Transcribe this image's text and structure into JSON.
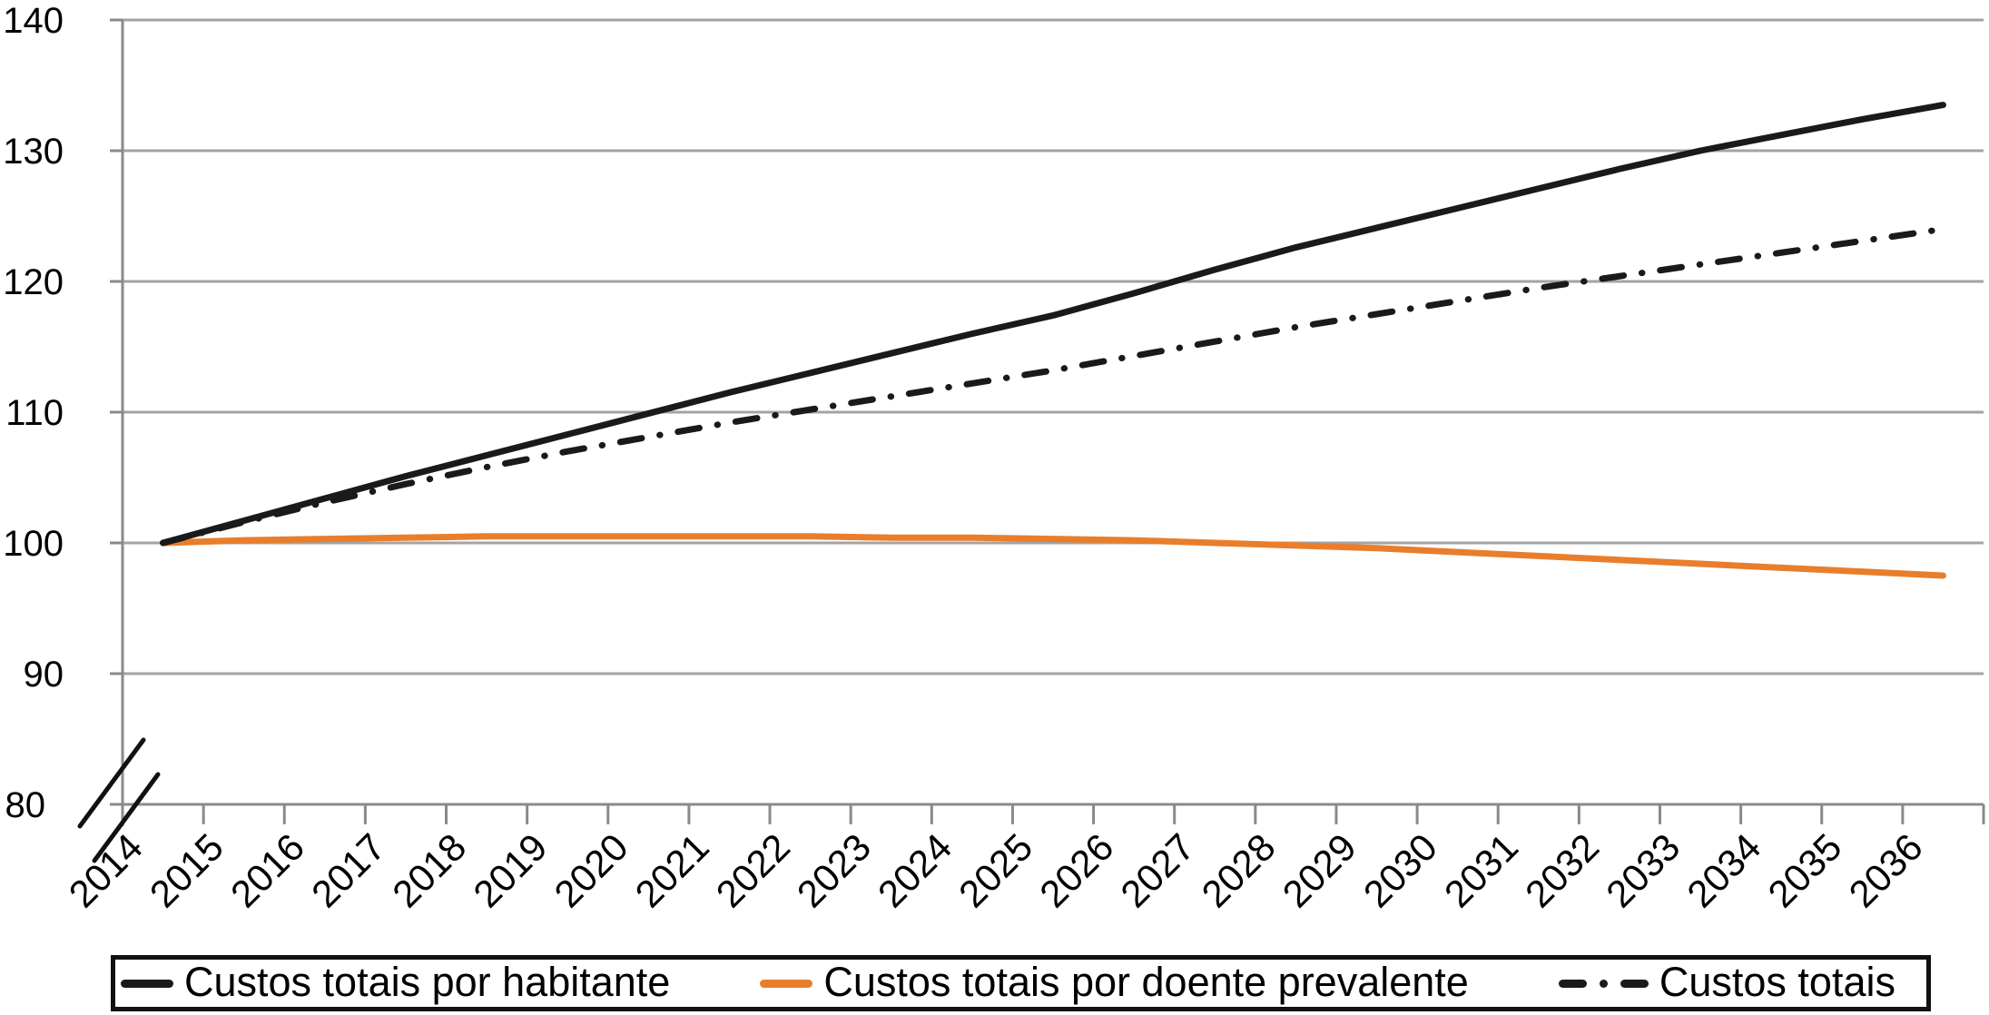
{
  "chart_data": {
    "type": "line",
    "title": "",
    "xlabel": "",
    "ylabel": "",
    "x_categories": [
      "2014",
      "2015",
      "2016",
      "2017",
      "2018",
      "2019",
      "2020",
      "2021",
      "2022",
      "2023",
      "2024",
      "2025",
      "2026",
      "2027",
      "2028",
      "2029",
      "2030",
      "2031",
      "2032",
      "2033",
      "2034",
      "2035",
      "2036"
    ],
    "yticks": [
      80,
      90,
      100,
      110,
      120,
      130,
      140
    ],
    "ylim": [
      80,
      140
    ],
    "y_axis_break_below": 90,
    "grid": "horizontal",
    "legend_position": "bottom",
    "index_base": 100,
    "series": [
      {
        "name": "Custos totais por habitante",
        "style": "solid",
        "color": "#1a1a1a",
        "values": [
          100.0,
          101.7,
          103.4,
          105.1,
          106.7,
          108.3,
          109.9,
          111.5,
          113.0,
          114.5,
          116.0,
          117.4,
          119.1,
          120.9,
          122.6,
          124.1,
          125.6,
          127.1,
          128.6,
          130.0,
          131.2,
          132.4,
          133.5
        ]
      },
      {
        "name": "Custos totais por doente prevalente",
        "style": "solid",
        "color": "#e87e2c",
        "values": [
          100.0,
          100.2,
          100.3,
          100.4,
          100.5,
          100.5,
          100.5,
          100.5,
          100.5,
          100.4,
          100.4,
          100.3,
          100.2,
          100.0,
          99.8,
          99.6,
          99.3,
          99.0,
          98.7,
          98.4,
          98.1,
          97.8,
          97.5
        ]
      },
      {
        "name": "Custos totais",
        "style": "dashdot",
        "color": "#1a1a1a",
        "values": [
          100.0,
          101.6,
          103.1,
          104.5,
          105.8,
          107.0,
          108.1,
          109.2,
          110.2,
          111.2,
          112.2,
          113.2,
          114.3,
          115.4,
          116.5,
          117.5,
          118.5,
          119.5,
          120.4,
          121.3,
          122.2,
          123.1,
          124.0
        ]
      }
    ],
    "colors": {
      "gridline": "#a3a3a3",
      "axis": "#8a8a8a",
      "break_mark": "#111111",
      "text": "#000000",
      "orange_accent": "#e87e2c",
      "line_black": "#1a1a1a"
    }
  }
}
